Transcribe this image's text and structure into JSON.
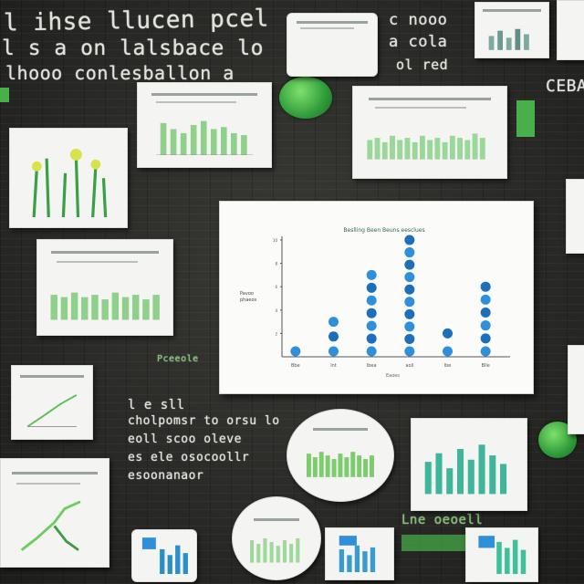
{
  "chalk_text": {
    "line1": "l ihse llucen pcel dleny",
    "line2": "l s a on lalsbace lo",
    "line3": "lhooo conlesballon a",
    "right_top_1": "c nooo",
    "right_top_2": "a cola",
    "right_top_3": "ol red",
    "corner": "CEBA",
    "mid_left_1": "l e sll",
    "mid_left_2": "cholpomsr to orsu lo",
    "mid_left_3": "eoll scoo oleve",
    "mid_left_4": "es ele osocoollr",
    "mid_left_5": "esoonanaor",
    "small_green": "Pceeole",
    "bottom_right": "Lne oeoell"
  },
  "main_chart": {
    "title": "Beslling Been Beuns eesclues",
    "ylabel": "Pavoo phaeos",
    "xlabel": "Eaoes"
  },
  "chart_data": {
    "type": "scatter",
    "title": "Beslling Been Beuns eesclues",
    "xlabel": "Eaoes",
    "ylabel": "Pavoo phaeos",
    "categories": [
      "Bbe",
      "Int",
      "Ibea",
      "aoll",
      "Ibe",
      "Blle"
    ],
    "series": [
      {
        "values": [
          1,
          3,
          7,
          10,
          2,
          6
        ]
      }
    ],
    "ylim": [
      0,
      10
    ],
    "yticks": [
      "2",
      "4",
      "6",
      "8",
      "10"
    ],
    "grid": false,
    "colors": {
      "marker": "#2f8fd8",
      "marker_dark": "#1c6fb8",
      "axis": "#555555"
    }
  },
  "colors": {
    "board": "#2a2a28",
    "chalk": "#f2f2ea",
    "accent_green": "#48b04a",
    "accent_blue": "#2f8fd8"
  }
}
